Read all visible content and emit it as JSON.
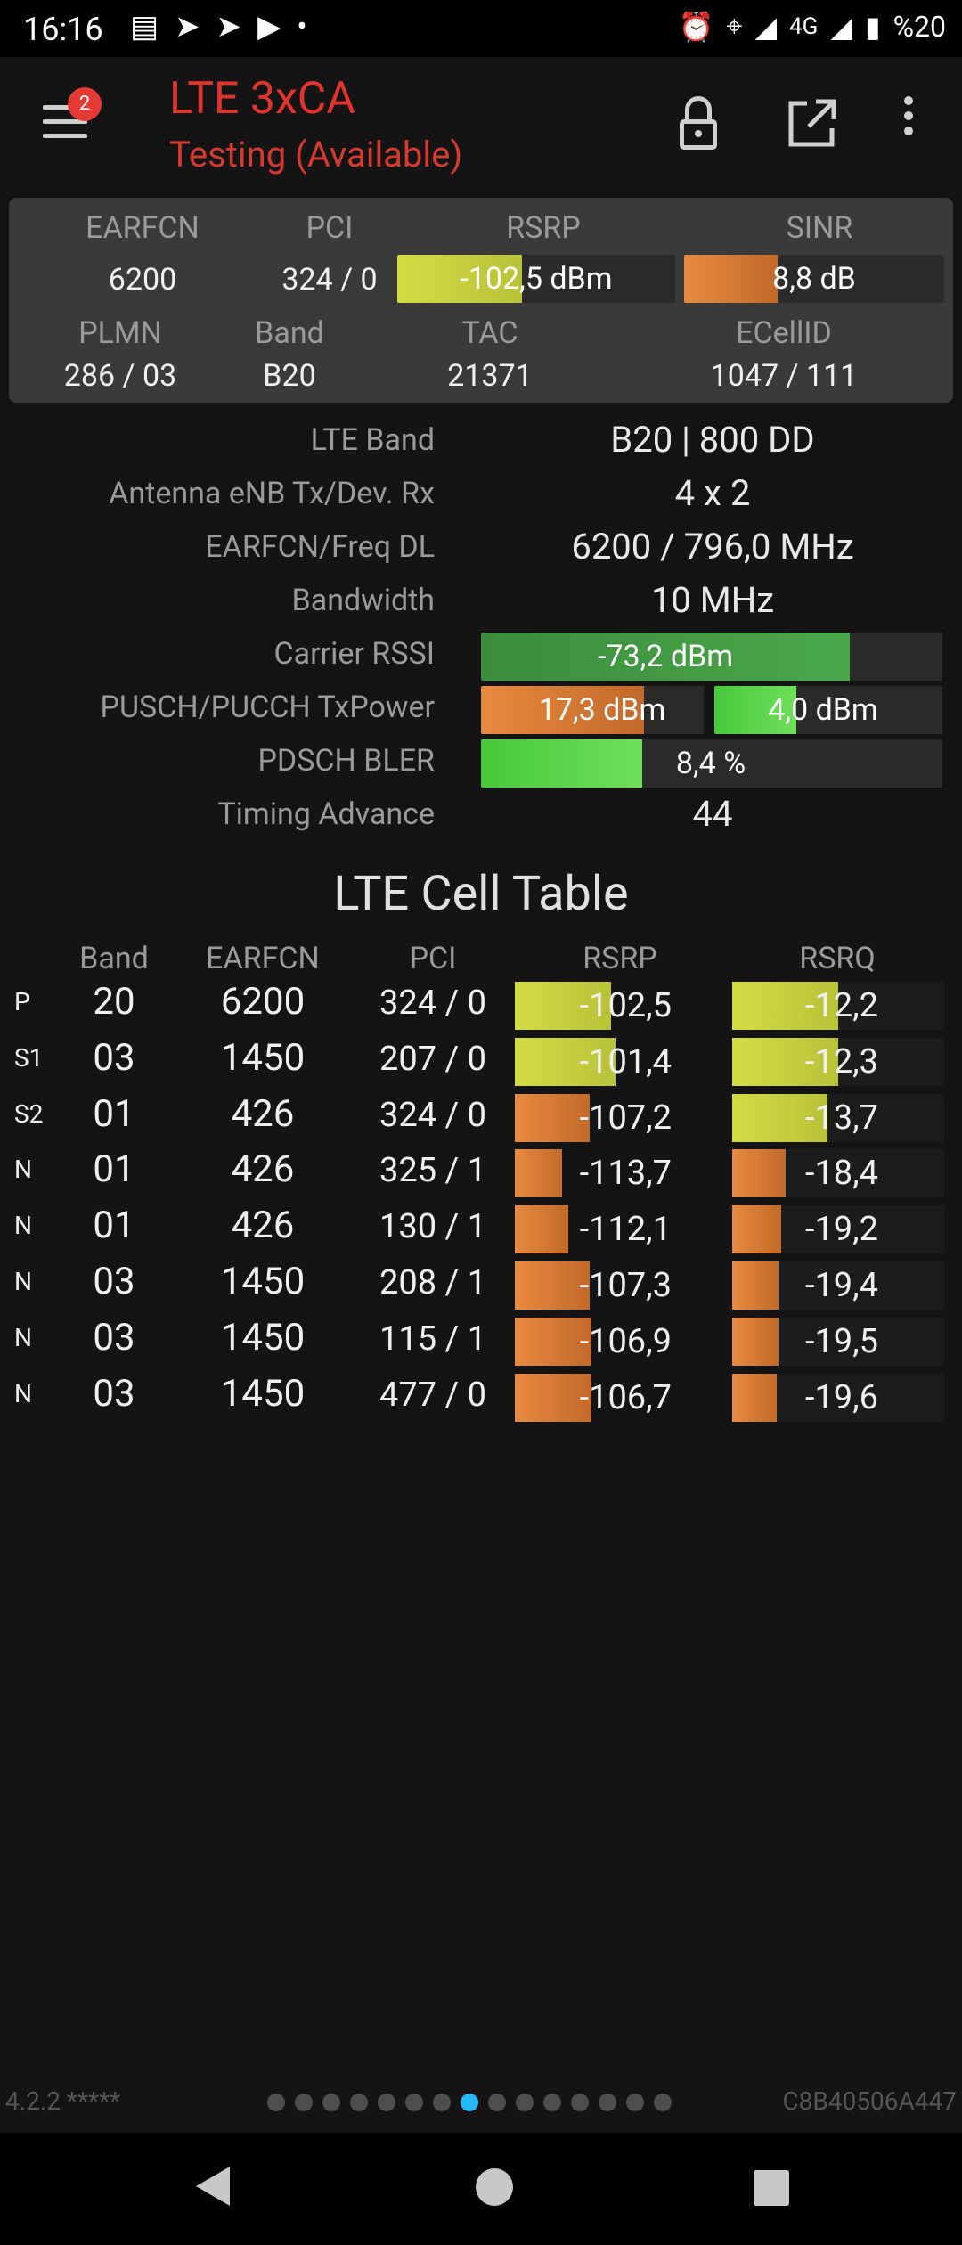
{
  "status_bar": {
    "time": "16:16",
    "left_icons": [
      "news-icon",
      "telegram-icon",
      "telegram-icon",
      "youtube-icon",
      "dot-icon"
    ],
    "network": "4G",
    "battery": "%20",
    "right_icons": [
      "alarm-icon",
      "location-icon",
      "signal-icon",
      "signal-icon",
      "battery-icon"
    ]
  },
  "app_bar": {
    "badge": "2",
    "title": "LTE 3xCA",
    "subtitle": "Testing (Available)",
    "title_color": "#e2342c"
  },
  "summary": {
    "labels": {
      "earfcn": "EARFCN",
      "pci": "PCI",
      "rsrp": "RSRP",
      "sinr": "SINR",
      "plmn": "PLMN",
      "band": "Band",
      "tac": "TAC",
      "ecellid": "ECellID"
    },
    "earfcn": "6200",
    "pci": "324 / 0",
    "rsrp": "-102,5 dBm",
    "rsrp_level": 0.45,
    "sinr": "8,8 dB",
    "sinr_level": 0.36,
    "plmn": "286 / 03",
    "band": "B20",
    "tac": "21371",
    "ecellid": "1047 / 111"
  },
  "details": {
    "lte_band_label": "LTE Band",
    "lte_band": "B20 | 800 DD",
    "antenna_label": "Antenna eNB Tx/Dev. Rx",
    "antenna": "4 x 2",
    "earfcn_freq_label": "EARFCN/Freq DL",
    "earfcn_freq": "6200 / 796,0 MHz",
    "bandwidth_label": "Bandwidth",
    "bandwidth": "10 MHz",
    "rssi_label": "Carrier RSSI",
    "rssi": "-73,2 dBm",
    "rssi_level": 0.8,
    "txpower_label": "PUSCH/PUCCH TxPower",
    "pusch": "17,3 dBm",
    "pusch_level": 0.73,
    "pucch": "4,0 dBm",
    "pucch_level": 0.36,
    "bler_label": "PDSCH BLER",
    "bler": "8,4 %",
    "bler_level": 0.35,
    "ta_label": "Timing Advance",
    "ta": "44"
  },
  "cell_table": {
    "title": "LTE Cell Table",
    "headers": [
      "Band",
      "EARFCN",
      "PCI",
      "RSRP",
      "RSRQ"
    ],
    "rows": [
      {
        "type": "P",
        "band": "20",
        "earfcn": "6200",
        "pci": "324 / 0",
        "rsrp": "-102,5",
        "rsrp_level": 0.45,
        "rsrp_color": "yellow",
        "rsrq": "-12,2",
        "rsrq_level": 0.5,
        "rsrq_color": "yellow"
      },
      {
        "type": "S1",
        "band": "03",
        "earfcn": "1450",
        "pci": "207 / 0",
        "rsrp": "-101,4",
        "rsrp_level": 0.47,
        "rsrp_color": "yellow",
        "rsrq": "-12,3",
        "rsrq_level": 0.5,
        "rsrq_color": "yellow"
      },
      {
        "type": "S2",
        "band": "01",
        "earfcn": "426",
        "pci": "324 / 0",
        "rsrp": "-107,2",
        "rsrp_level": 0.35,
        "rsrp_color": "orange",
        "rsrq": "-13,7",
        "rsrq_level": 0.45,
        "rsrq_color": "yellow"
      },
      {
        "type": "N",
        "band": "01",
        "earfcn": "426",
        "pci": "325 / 1",
        "rsrp": "-113,7",
        "rsrp_level": 0.22,
        "rsrp_color": "orange",
        "rsrq": "-18,4",
        "rsrq_level": 0.25,
        "rsrq_color": "orange"
      },
      {
        "type": "N",
        "band": "01",
        "earfcn": "426",
        "pci": "130 / 1",
        "rsrp": "-112,1",
        "rsrp_level": 0.25,
        "rsrp_color": "orange",
        "rsrq": "-19,2",
        "rsrq_level": 0.23,
        "rsrq_color": "orange"
      },
      {
        "type": "N",
        "band": "03",
        "earfcn": "1450",
        "pci": "208 / 1",
        "rsrp": "-107,3",
        "rsrp_level": 0.35,
        "rsrp_color": "orange",
        "rsrq": "-19,4",
        "rsrq_level": 0.22,
        "rsrq_color": "orange"
      },
      {
        "type": "N",
        "band": "03",
        "earfcn": "1450",
        "pci": "115 / 1",
        "rsrp": "-106,9",
        "rsrp_level": 0.36,
        "rsrp_color": "orange",
        "rsrq": "-19,5",
        "rsrq_level": 0.22,
        "rsrq_color": "orange"
      },
      {
        "type": "N",
        "band": "03",
        "earfcn": "1450",
        "pci": "477 / 0",
        "rsrp": "-106,7",
        "rsrp_level": 0.36,
        "rsrp_color": "orange",
        "rsrq": "-19,6",
        "rsrq_level": 0.21,
        "rsrq_color": "orange"
      }
    ]
  },
  "footer": {
    "version": "4.2.2 *****",
    "device_id": "C8B40506A447",
    "page_count": 15,
    "active_page": 8,
    "active_color": "#29b6f6"
  },
  "nav": {
    "icons": [
      "back-icon",
      "home-icon",
      "recents-icon"
    ]
  }
}
